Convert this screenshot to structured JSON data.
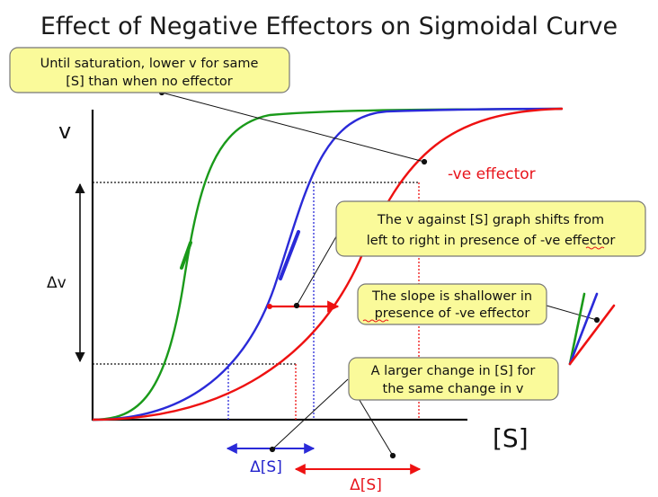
{
  "title": "Effect of Negative Effectors on Sigmoidal Curve",
  "axes": {
    "y_label": "v",
    "x_label": "[S]",
    "delta_v": "Δv"
  },
  "curve_labels": {
    "negative_effector": "-ve effector"
  },
  "delta_s_labels": {
    "blue": "Δ[S]",
    "red": "Δ[S]"
  },
  "notes": {
    "saturation": [
      "Until saturation, lower v for same",
      "[S] than when no effector"
    ],
    "shift": [
      "The v against [S] graph shifts from",
      "left to right in presence of -ve effector"
    ],
    "slope": [
      "The slope is shallower in",
      "presence of -ve effector"
    ],
    "larger_change": [
      "A larger change in [S] for",
      "the same change in v"
    ]
  },
  "colors": {
    "green_curve": "#1a9a1a",
    "blue_curve": "#2a2ad8",
    "red_curve": "#ee1111",
    "note_fill": "#fafa9a",
    "note_stroke": "#777777"
  }
}
